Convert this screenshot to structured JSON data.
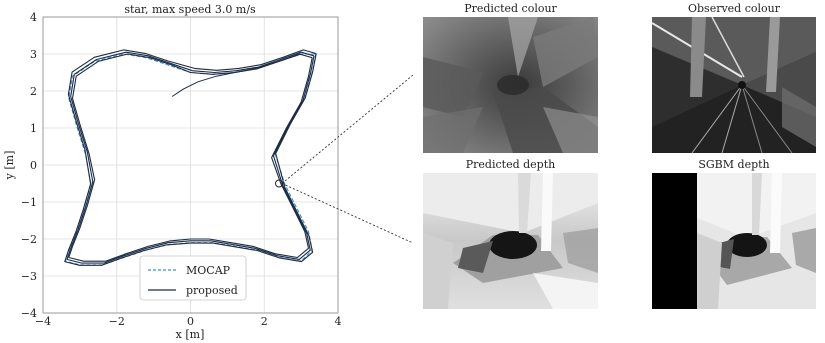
{
  "chart_data": {
    "type": "line",
    "title": "star, max speed 3.0 m/s",
    "xlabel": "x [m]",
    "ylabel": "y [m]",
    "xlim": [
      -4,
      4
    ],
    "ylim": [
      -4,
      4
    ],
    "xticks": [
      "−4",
      "−2",
      "0",
      "2",
      "4"
    ],
    "yticks": [
      "4",
      "3",
      "2",
      "1",
      "0",
      "−1",
      "−2",
      "−3",
      "−4"
    ],
    "grid": true,
    "legend_position": "bottom-center",
    "series": [
      {
        "name": "MOCAP",
        "color": "#3a8fcf",
        "style": "dashed",
        "x": [
          3.4,
          3.3,
          3.1,
          2.7,
          2.3,
          2.55,
          2.9,
          3.2,
          3.3,
          3.0,
          2.4,
          1.8,
          1.2,
          0.6,
          0.0,
          -0.6,
          -1.2,
          -1.8,
          -2.4,
          -3.0,
          -3.4,
          -3.3,
          -3.1,
          -2.9,
          -2.7,
          -2.85,
          -3.1,
          -3.3,
          -3.2,
          -2.6,
          -1.8,
          -1.2,
          -0.6,
          0.0,
          0.6,
          1.2,
          1.8,
          2.4,
          3.0,
          3.4
        ],
        "y": [
          3.0,
          2.5,
          1.8,
          1.1,
          0.3,
          -0.5,
          -1.2,
          -1.8,
          -2.3,
          -2.6,
          -2.5,
          -2.3,
          -2.2,
          -2.1,
          -2.1,
          -2.15,
          -2.3,
          -2.5,
          -2.7,
          -2.7,
          -2.6,
          -2.3,
          -1.8,
          -1.2,
          -0.5,
          0.3,
          1.1,
          1.8,
          2.4,
          2.8,
          3.0,
          2.9,
          2.7,
          2.5,
          2.45,
          2.5,
          2.6,
          2.8,
          3.0,
          3.0
        ]
      },
      {
        "name": "proposed",
        "color": "#1c2a44",
        "style": "solid",
        "x": [
          3.35,
          3.25,
          3.05,
          2.65,
          2.25,
          2.5,
          2.85,
          3.15,
          3.25,
          2.95,
          2.35,
          1.75,
          1.15,
          0.55,
          0.0,
          -0.6,
          -1.2,
          -1.8,
          -2.35,
          -2.95,
          -3.35,
          -3.25,
          -3.05,
          -2.85,
          -2.65,
          -2.8,
          -3.05,
          -3.25,
          -3.15,
          -2.55,
          -1.75,
          -1.15,
          -0.55,
          0.05,
          0.65,
          1.25,
          1.85,
          2.45,
          3.0,
          3.35
        ],
        "y": [
          2.95,
          2.45,
          1.75,
          1.05,
          0.25,
          -0.55,
          -1.25,
          -1.85,
          -2.3,
          -2.55,
          -2.45,
          -2.25,
          -2.15,
          -2.05,
          -2.05,
          -2.1,
          -2.25,
          -2.45,
          -2.65,
          -2.65,
          -2.55,
          -2.25,
          -1.75,
          -1.15,
          -0.45,
          0.35,
          1.15,
          1.85,
          2.45,
          2.85,
          3.05,
          2.95,
          2.75,
          2.55,
          2.5,
          2.55,
          2.65,
          2.85,
          3.05,
          2.95
        ]
      }
    ],
    "extra_lines": [
      {
        "color": "#1c2a44",
        "x": [
          -0.5,
          -0.2,
          0.2,
          0.7,
          1.2,
          1.8,
          2.4,
          3.0
        ],
        "y": [
          1.85,
          2.05,
          2.25,
          2.4,
          2.5,
          2.62,
          2.8,
          3.0
        ]
      }
    ],
    "marker": {
      "x": 2.4,
      "y": -0.5
    }
  },
  "images": {
    "predicted_colour": {
      "title": "Predicted colour"
    },
    "observed_colour": {
      "title": "Observed colour"
    },
    "predicted_depth": {
      "title": "Predicted depth"
    },
    "sgbm_depth": {
      "title": "SGBM depth"
    }
  },
  "colors": {
    "mocap": "#3a8fcf",
    "proposed": "#1c2a44",
    "grid": "#dcdcdc"
  }
}
